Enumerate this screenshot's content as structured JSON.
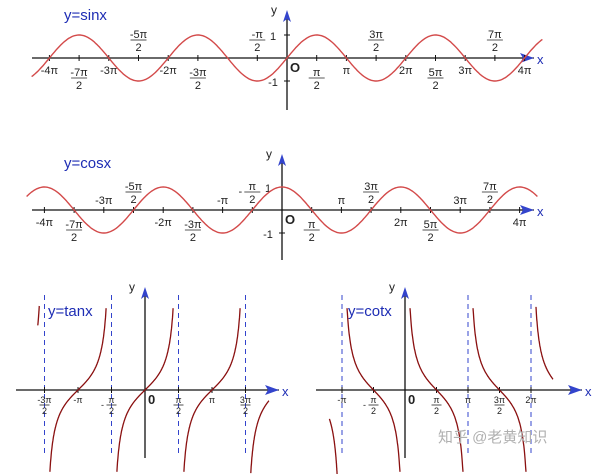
{
  "colors": {
    "curve": "#d34a4a",
    "curve_dark": "#8a1010",
    "axis": "#111111",
    "arrow": "#3344cc",
    "asymptote": "#3344cc",
    "title": "#1e2db4"
  },
  "chart_data": [
    {
      "type": "line",
      "title": "y=sinx",
      "function": "sin",
      "xlabel": "x",
      "ylabel": "y",
      "origin_label": "O",
      "xlim_pi": [
        -4.3,
        4.3
      ],
      "ylim": [
        -1.2,
        1.2
      ],
      "grid": false,
      "y_ticks": [
        {
          "value": 1,
          "label": "1"
        },
        {
          "value": -1,
          "label": "-1"
        }
      ],
      "x_ticks": [
        {
          "value_pi": -4,
          "label": "-4π",
          "pos": "below"
        },
        {
          "value_pi": -3.5,
          "num": "-7π",
          "den": "2",
          "pos": "below"
        },
        {
          "value_pi": -3,
          "label": "-3π",
          "pos": "below"
        },
        {
          "value_pi": -2.5,
          "num": "-5π",
          "den": "2",
          "pos": "above"
        },
        {
          "value_pi": -2,
          "label": "-2π",
          "pos": "below"
        },
        {
          "value_pi": -1.5,
          "num": "-3π",
          "den": "2",
          "pos": "below"
        },
        {
          "value_pi": -0.5,
          "num": "-π",
          "den": "2",
          "pos": "above"
        },
        {
          "value_pi": 0.5,
          "num": "π",
          "den": "2",
          "pos": "below"
        },
        {
          "value_pi": 1,
          "label": "π",
          "pos": "below"
        },
        {
          "value_pi": 1.5,
          "num": "3π",
          "den": "2",
          "pos": "above"
        },
        {
          "value_pi": 2,
          "label": "2π",
          "pos": "below"
        },
        {
          "value_pi": 2.5,
          "num": "5π",
          "den": "2",
          "pos": "below"
        },
        {
          "value_pi": 3,
          "label": "3π",
          "pos": "below"
        },
        {
          "value_pi": 3.5,
          "num": "7π",
          "den": "2",
          "pos": "above"
        },
        {
          "value_pi": 4,
          "label": "4π",
          "pos": "below"
        }
      ]
    },
    {
      "type": "line",
      "title": "y=cosx",
      "function": "cos",
      "xlabel": "x",
      "ylabel": "y",
      "origin_label": "O",
      "xlim_pi": [
        -4.3,
        4.3
      ],
      "ylim": [
        -1.2,
        1.2
      ],
      "grid": false,
      "y_ticks": [
        {
          "value": 1,
          "label": "1"
        },
        {
          "value": -1,
          "label": "-1"
        }
      ],
      "x_ticks": [
        {
          "value_pi": -4,
          "label": "-4π",
          "pos": "below"
        },
        {
          "value_pi": -3.5,
          "num": "-7π",
          "den": "2",
          "pos": "below"
        },
        {
          "value_pi": -3,
          "label": "-3π",
          "pos": "above"
        },
        {
          "value_pi": -2.5,
          "num": "-5π",
          "den": "2",
          "pos": "above"
        },
        {
          "value_pi": -2,
          "label": "-2π",
          "pos": "below"
        },
        {
          "value_pi": -1.5,
          "num": "-3π",
          "den": "2",
          "pos": "below"
        },
        {
          "value_pi": -1,
          "label": "-π",
          "pos": "above"
        },
        {
          "value_pi": -0.5,
          "num": "π",
          "den": "2",
          "pos": "above",
          "neg_prefix": true
        },
        {
          "value_pi": 0.5,
          "num": "π",
          "den": "2",
          "pos": "below"
        },
        {
          "value_pi": 1,
          "label": "π",
          "pos": "above"
        },
        {
          "value_pi": 1.5,
          "num": "3π",
          "den": "2",
          "pos": "above"
        },
        {
          "value_pi": 2,
          "label": "2π",
          "pos": "below"
        },
        {
          "value_pi": 2.5,
          "num": "5π",
          "den": "2",
          "pos": "below"
        },
        {
          "value_pi": 3,
          "label": "3π",
          "pos": "above"
        },
        {
          "value_pi": 3.5,
          "num": "7π",
          "den": "2",
          "pos": "above"
        },
        {
          "value_pi": 4,
          "label": "4π",
          "pos": "below"
        }
      ]
    },
    {
      "type": "line",
      "title": "y=tanx",
      "function": "tan",
      "xlabel": "x",
      "ylabel": "y",
      "origin_label": "0",
      "xlim_pi": [
        -1.6,
        1.85
      ],
      "ylim": [
        -4,
        4
      ],
      "grid": false,
      "asymptotes_pi": [
        -1.5,
        -0.5,
        0.5,
        1.5
      ],
      "x_ticks": [
        {
          "value_pi": -1.5,
          "num": "-3π",
          "den": "2",
          "pos": "below"
        },
        {
          "value_pi": -1,
          "label": "-π",
          "pos": "below"
        },
        {
          "value_pi": -0.5,
          "num": "π",
          "den": "2",
          "pos": "below",
          "neg_prefix": true
        },
        {
          "value_pi": 0.5,
          "num": "π",
          "den": "2",
          "pos": "below"
        },
        {
          "value_pi": 1,
          "label": "π",
          "pos": "below"
        },
        {
          "value_pi": 1.5,
          "num": "3π",
          "den": "2",
          "pos": "below"
        }
      ]
    },
    {
      "type": "line",
      "title": "y=cotx",
      "function": "cot",
      "xlabel": "x",
      "ylabel": "y",
      "origin_label": "0",
      "xlim_pi": [
        -1.2,
        2.35
      ],
      "ylim": [
        -4,
        4
      ],
      "grid": false,
      "asymptotes_pi": [
        -1,
        0,
        1,
        2
      ],
      "x_ticks": [
        {
          "value_pi": -1,
          "label": "-π",
          "pos": "below"
        },
        {
          "value_pi": -0.5,
          "num": "π",
          "den": "2",
          "pos": "below",
          "neg_prefix": true
        },
        {
          "value_pi": 0.5,
          "num": "π",
          "den": "2",
          "pos": "below"
        },
        {
          "value_pi": 1,
          "label": "π",
          "pos": "below"
        },
        {
          "value_pi": 1.5,
          "num": "3π",
          "den": "2",
          "pos": "below"
        },
        {
          "value_pi": 2,
          "label": "2π",
          "pos": "below"
        }
      ]
    }
  ],
  "watermark": "知乎 @老黄知识"
}
